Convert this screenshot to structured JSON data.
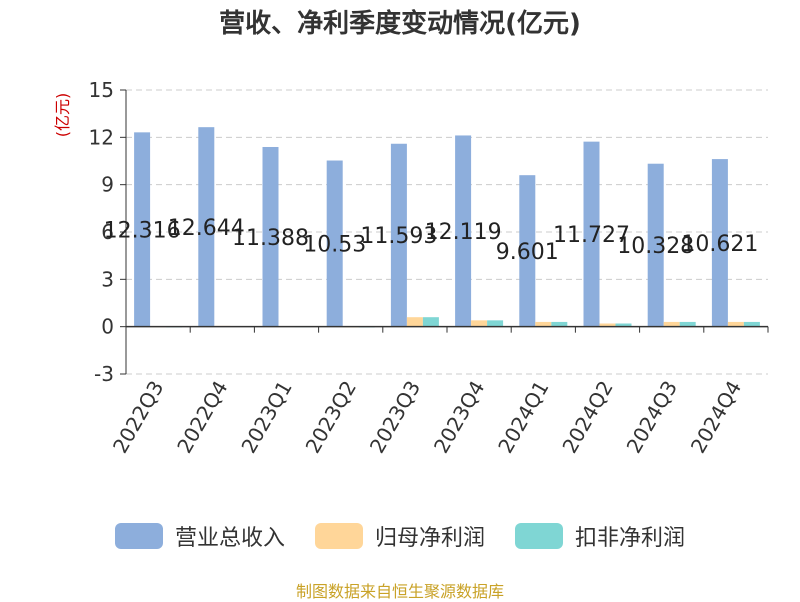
{
  "chart_data": {
    "type": "bar",
    "title": "营收、净利季度变动情况(亿元)",
    "ylabel": "(亿元)",
    "ylim": [
      -3,
      15
    ],
    "yticks": [
      -3,
      0,
      3,
      6,
      9,
      12,
      15
    ],
    "grid": true,
    "legend_position": "bottom",
    "categories": [
      "2022Q3",
      "2022Q4",
      "2023Q1",
      "2023Q2",
      "2023Q3",
      "2023Q4",
      "2024Q1",
      "2024Q2",
      "2024Q3",
      "2024Q4"
    ],
    "series": [
      {
        "name": "营业总收入",
        "color": "#8DAEDC",
        "values": [
          12.316,
          12.644,
          11.388,
          10.53,
          11.593,
          12.119,
          9.601,
          11.727,
          10.328,
          10.621
        ],
        "labels": [
          "12.316",
          "12.644",
          "11.388",
          "10.53",
          "11.593",
          "12.119",
          "9.601",
          "11.727",
          "10.328",
          "10.621"
        ]
      },
      {
        "name": "归母净利润",
        "color": "#FFD699",
        "values": [
          0.02,
          0.05,
          0.03,
          0.01,
          0.6,
          0.4,
          0.3,
          0.2,
          0.3,
          0.3
        ]
      },
      {
        "name": "扣非净利润",
        "color": "#7FD6D4",
        "values": [
          0.01,
          0.04,
          0.02,
          0.0,
          0.6,
          0.4,
          0.3,
          0.2,
          0.3,
          0.3
        ]
      }
    ]
  },
  "source_text": "制图数据来自恒生聚源数据库"
}
